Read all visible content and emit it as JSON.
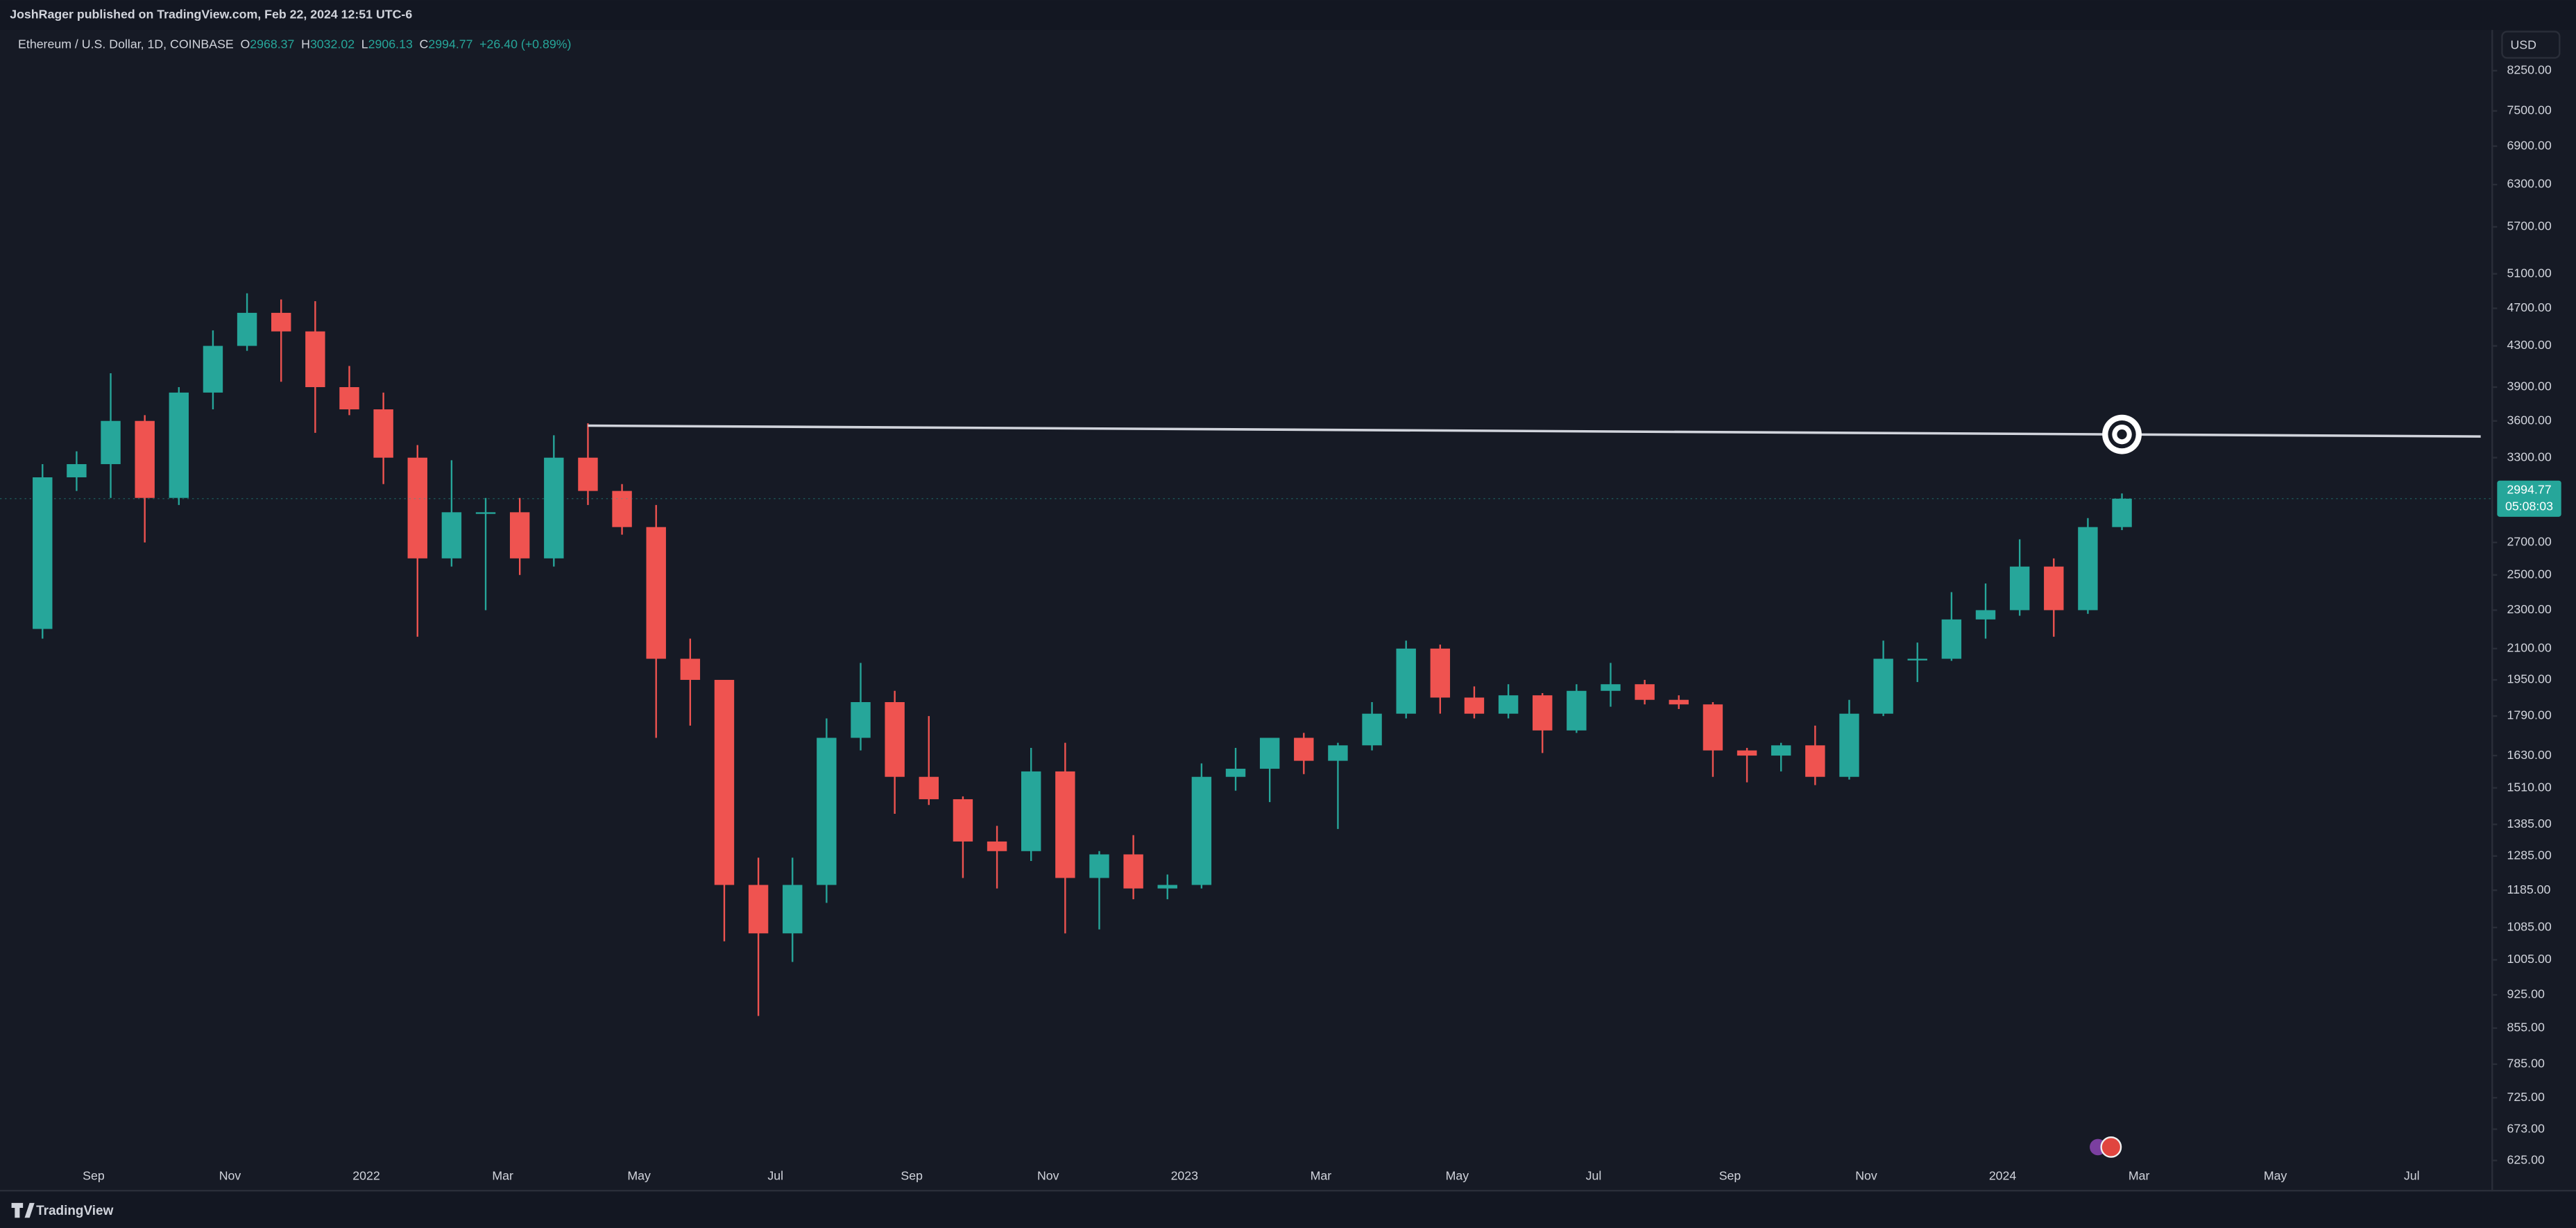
{
  "chart_data": {
    "type": "candlestick",
    "publisher_note": "JoshRager published on TradingView.com, Feb 22, 2024 12:51 UTC-6",
    "symbol": "Ethereum / U.S. Dollar, 1D, COINBASE",
    "ohlc_header": [
      {
        "key": "O",
        "value": 2968.37
      },
      {
        "key": "H",
        "value": 3032.02
      },
      {
        "key": "L",
        "value": 2906.13
      },
      {
        "key": "C",
        "value": 2994.77
      }
    ],
    "change": {
      "value": 26.4,
      "label": "+26.40"
    },
    "change_pct": {
      "value": 0.89,
      "label": "(+0.89%)"
    },
    "currency": "USD",
    "last_price": 2994.77,
    "countdown": "05:08:03",
    "brand": "TradingView",
    "log_scale": true,
    "grid": false,
    "up_color": "#26a69a",
    "down_color": "#ef5350",
    "categories": [
      null,
      null,
      "Sep",
      null,
      null,
      null,
      "Nov",
      null,
      null,
      null,
      "2022",
      null,
      null,
      null,
      "Mar",
      null,
      null,
      null,
      "May",
      null,
      null,
      null,
      "Jul",
      null,
      null,
      null,
      "Sep",
      null,
      null,
      null,
      "Nov",
      null,
      null,
      null,
      "2023",
      null,
      null,
      null,
      "Mar",
      null,
      null,
      null,
      "May",
      null,
      null,
      null,
      "Jul",
      null,
      null,
      null,
      "Sep",
      null,
      null,
      null,
      "Nov",
      null,
      null,
      null,
      "2024",
      null,
      null,
      null,
      "Mar",
      null,
      null,
      null,
      "May",
      null,
      null,
      null,
      "Jul",
      null,
      null,
      null
    ],
    "open": [
      2200,
      3150,
      3250,
      3600,
      3000,
      3850,
      4300,
      4650,
      4450,
      3900,
      3700,
      3300,
      2600,
      2900,
      2900,
      2600,
      3300,
      3050,
      2800,
      2050,
      1950,
      1200,
      1070,
      1200,
      1700,
      1850,
      1550,
      1470,
      1330,
      1300,
      1570,
      1220,
      1290,
      1190,
      1200,
      1550,
      1580,
      1700,
      1610,
      1670,
      1800,
      2100,
      1870,
      1800,
      1880,
      1730,
      1900,
      1930,
      1860,
      1840,
      1650,
      1630,
      1670,
      1550,
      1800,
      2050,
      2050,
      2250,
      2300,
      2550,
      2300,
      2800,
      null,
      null,
      null,
      null,
      null,
      null,
      null,
      null,
      null,
      null,
      null,
      null
    ],
    "high": [
      3250,
      3350,
      4030,
      3650,
      3900,
      4460,
      4870,
      4800,
      4780,
      4100,
      3850,
      3400,
      3280,
      3000,
      3000,
      3480,
      3580,
      3100,
      2950,
      2150,
      1950,
      1280,
      1280,
      1780,
      2030,
      1900,
      1790,
      1480,
      1380,
      1660,
      1680,
      1300,
      1350,
      1230,
      1600,
      1660,
      1700,
      1720,
      1680,
      1850,
      2140,
      2120,
      1920,
      1930,
      1890,
      1930,
      2030,
      1950,
      1880,
      1850,
      1660,
      1680,
      1750,
      1860,
      2140,
      2130,
      2400,
      2450,
      2720,
      2600,
      2860,
      3032,
      null,
      null,
      null,
      null,
      null,
      null,
      null,
      null,
      null,
      null,
      null,
      null
    ],
    "low": [
      2150,
      3050,
      3000,
      2700,
      2950,
      3700,
      4250,
      3950,
      3500,
      3650,
      3100,
      2160,
      2550,
      2300,
      2500,
      2550,
      2950,
      2750,
      1700,
      1750,
      1050,
      880,
      1000,
      1150,
      1650,
      1420,
      1450,
      1220,
      1190,
      1270,
      1070,
      1080,
      1160,
      1160,
      1190,
      1500,
      1460,
      1560,
      1370,
      1650,
      1780,
      1800,
      1780,
      1780,
      1640,
      1720,
      1830,
      1840,
      1820,
      1550,
      1530,
      1570,
      1520,
      1540,
      1790,
      1940,
      2040,
      2150,
      2270,
      2160,
      2280,
      2780,
      null,
      null,
      null,
      null,
      null,
      null,
      null,
      null,
      null,
      null,
      null,
      null
    ],
    "close": [
      3150,
      3250,
      3600,
      3000,
      3850,
      4300,
      4650,
      4450,
      3900,
      3700,
      3300,
      2600,
      2900,
      2900,
      2600,
      3300,
      3050,
      2800,
      2050,
      1950,
      1200,
      1070,
      1200,
      1700,
      1850,
      1550,
      1470,
      1330,
      1300,
      1570,
      1220,
      1290,
      1190,
      1200,
      1550,
      1580,
      1700,
      1610,
      1670,
      1800,
      2100,
      1870,
      1800,
      1880,
      1730,
      1900,
      1930,
      1860,
      1840,
      1650,
      1630,
      1670,
      1550,
      1800,
      2050,
      2050,
      2250,
      2300,
      2550,
      2300,
      2800,
      2994.77,
      null,
      null,
      null,
      null,
      null,
      null,
      null,
      null,
      null,
      null,
      null,
      null
    ],
    "trend_line": {
      "start": 3560,
      "end": 3470,
      "color": "#d1d4dc"
    },
    "ylim": [
      583,
      9085
    ],
    "yticks": [
      {
        "value": 8250,
        "label": "8250.00"
      },
      {
        "value": 7500,
        "label": "7500.00"
      },
      {
        "value": 6900,
        "label": "6900.00"
      },
      {
        "value": 6300,
        "label": "6300.00"
      },
      {
        "value": 5700,
        "label": "5700.00"
      },
      {
        "value": 5100,
        "label": "5100.00"
      },
      {
        "value": 4700,
        "label": "4700.00"
      },
      {
        "value": 4300,
        "label": "4300.00"
      },
      {
        "value": 3900,
        "label": "3900.00"
      },
      {
        "value": 3600,
        "label": "3600.00"
      },
      {
        "value": 3300,
        "label": "3300.00"
      },
      {
        "value": 2700,
        "label": "2700.00"
      },
      {
        "value": 2500,
        "label": "2500.00"
      },
      {
        "value": 2300,
        "label": "2300.00"
      },
      {
        "value": 2100,
        "label": "2100.00"
      },
      {
        "value": 1950,
        "label": "1950.00"
      },
      {
        "value": 1790,
        "label": "1790.00"
      },
      {
        "value": 1630,
        "label": "1630.00"
      },
      {
        "value": 1510,
        "label": "1510.00"
      },
      {
        "value": 1385,
        "label": "1385.00"
      },
      {
        "value": 1285,
        "label": "1285.00"
      },
      {
        "value": 1185,
        "label": "1185.00"
      },
      {
        "value": 1085,
        "label": "1085.00"
      },
      {
        "value": 1005,
        "label": "1005.00"
      },
      {
        "value": 925,
        "label": "925.00"
      },
      {
        "value": 855,
        "label": "855.00"
      },
      {
        "value": 785,
        "label": "785.00"
      },
      {
        "value": 725,
        "label": "725.00"
      },
      {
        "value": 673,
        "label": "673.00"
      },
      {
        "value": 625,
        "label": "625.00"
      }
    ]
  }
}
